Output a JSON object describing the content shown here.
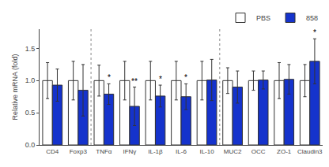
{
  "chart_data": {
    "type": "bar",
    "categories": [
      "CD4",
      "Foxp3",
      "TNFα",
      "IFNγ",
      "IL-1β",
      "IL-6",
      "IL-10",
      "MUC2",
      "OCC",
      "ZO-1",
      "Claudin3"
    ],
    "series": [
      {
        "name": "PBS",
        "color": "white",
        "values": [
          1.0,
          1.0,
          1.0,
          1.0,
          1.0,
          1.0,
          1.0,
          1.0,
          1.0,
          1.0,
          1.0
        ],
        "errors": [
          0.28,
          0.3,
          0.24,
          0.3,
          0.3,
          0.3,
          0.3,
          0.2,
          0.15,
          0.28,
          0.25
        ]
      },
      {
        "name": "858",
        "color": "#1533cc",
        "values": [
          0.93,
          0.85,
          0.79,
          0.6,
          0.76,
          0.75,
          1.01,
          0.9,
          1.01,
          1.02,
          1.3
        ],
        "errors": [
          0.25,
          0.4,
          0.16,
          0.3,
          0.17,
          0.2,
          0.32,
          0.25,
          0.14,
          0.23,
          0.35
        ]
      }
    ],
    "annotations": [
      {
        "category": "TNFα",
        "series": "858",
        "text": "*"
      },
      {
        "category": "IFNγ",
        "series": "858",
        "text": "**"
      },
      {
        "category": "IL-1β",
        "series": "858",
        "text": "*"
      },
      {
        "category": "IL-6",
        "series": "858",
        "text": "*"
      },
      {
        "category": "Claudin3",
        "series": "858",
        "text": "*"
      }
    ],
    "dividers_after": [
      "Foxp3",
      "IL-10"
    ],
    "ylabel": "Relative mRNA (fold)",
    "ylim": [
      0.0,
      1.8
    ],
    "yticks": [
      {
        "value": 0.0,
        "label": "0.0"
      },
      0.5,
      {
        "value": 1.0,
        "label": "1.0"
      },
      1.5
    ],
    "grid": false,
    "legend": "upper right"
  }
}
